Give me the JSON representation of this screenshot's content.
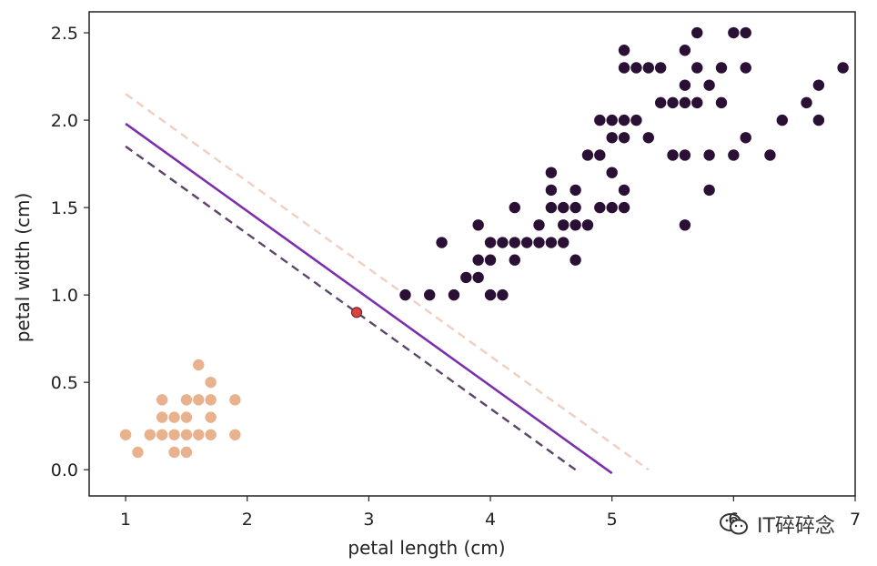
{
  "chart_data": {
    "type": "scatter",
    "title": "",
    "xlabel": "petal length (cm)",
    "ylabel": "petal width (cm)",
    "xlim": [
      0.7,
      7.0
    ],
    "ylim": [
      -0.15,
      2.62
    ],
    "xticks": [
      1,
      2,
      3,
      4,
      5,
      6,
      7
    ],
    "xtick_labels": [
      "1",
      "2",
      "3",
      "4",
      "5",
      "6",
      "7"
    ],
    "yticks": [
      0.0,
      0.5,
      1.0,
      1.5,
      2.0,
      2.5
    ],
    "ytick_labels": [
      "0.0",
      "0.5",
      "1.0",
      "1.5",
      "2.0",
      "2.5"
    ],
    "grid": false,
    "legend": "none",
    "series": [
      {
        "color": "#E9B28F",
        "points": [
          [
            1.0,
            0.2
          ],
          [
            1.1,
            0.1
          ],
          [
            1.2,
            0.2
          ],
          [
            1.3,
            0.2
          ],
          [
            1.3,
            0.3
          ],
          [
            1.3,
            0.4
          ],
          [
            1.4,
            0.1
          ],
          [
            1.4,
            0.2
          ],
          [
            1.4,
            0.3
          ],
          [
            1.5,
            0.1
          ],
          [
            1.5,
            0.2
          ],
          [
            1.5,
            0.3
          ],
          [
            1.5,
            0.4
          ],
          [
            1.6,
            0.2
          ],
          [
            1.6,
            0.4
          ],
          [
            1.6,
            0.6
          ],
          [
            1.7,
            0.2
          ],
          [
            1.7,
            0.3
          ],
          [
            1.7,
            0.4
          ],
          [
            1.7,
            0.5
          ],
          [
            1.9,
            0.2
          ],
          [
            1.9,
            0.4
          ]
        ]
      },
      {
        "color": "#2B1035",
        "points": [
          [
            3.3,
            1.0
          ],
          [
            3.5,
            1.0
          ],
          [
            3.6,
            1.3
          ],
          [
            3.7,
            1.0
          ],
          [
            3.8,
            1.1
          ],
          [
            3.9,
            1.1
          ],
          [
            3.9,
            1.2
          ],
          [
            3.9,
            1.4
          ],
          [
            4.0,
            1.0
          ],
          [
            4.0,
            1.2
          ],
          [
            4.0,
            1.3
          ],
          [
            4.1,
            1.0
          ],
          [
            4.1,
            1.3
          ],
          [
            4.2,
            1.2
          ],
          [
            4.2,
            1.3
          ],
          [
            4.2,
            1.5
          ],
          [
            4.3,
            1.3
          ],
          [
            4.4,
            1.3
          ],
          [
            4.4,
            1.4
          ],
          [
            4.5,
            1.3
          ],
          [
            4.5,
            1.5
          ],
          [
            4.5,
            1.6
          ],
          [
            4.5,
            1.7
          ],
          [
            4.6,
            1.3
          ],
          [
            4.6,
            1.4
          ],
          [
            4.6,
            1.5
          ],
          [
            4.7,
            1.2
          ],
          [
            4.7,
            1.4
          ],
          [
            4.7,
            1.5
          ],
          [
            4.7,
            1.6
          ],
          [
            4.8,
            1.4
          ],
          [
            4.8,
            1.8
          ],
          [
            4.9,
            1.5
          ],
          [
            4.9,
            1.8
          ],
          [
            4.9,
            2.0
          ],
          [
            5.0,
            1.5
          ],
          [
            5.0,
            1.7
          ],
          [
            5.0,
            1.9
          ],
          [
            5.0,
            2.0
          ],
          [
            5.1,
            1.5
          ],
          [
            5.1,
            1.6
          ],
          [
            5.1,
            1.9
          ],
          [
            5.1,
            2.0
          ],
          [
            5.1,
            2.3
          ],
          [
            5.1,
            2.4
          ],
          [
            5.2,
            2.0
          ],
          [
            5.2,
            2.3
          ],
          [
            5.3,
            1.9
          ],
          [
            5.3,
            2.3
          ],
          [
            5.4,
            2.1
          ],
          [
            5.4,
            2.3
          ],
          [
            5.5,
            1.8
          ],
          [
            5.5,
            2.1
          ],
          [
            5.6,
            1.4
          ],
          [
            5.6,
            1.8
          ],
          [
            5.6,
            2.1
          ],
          [
            5.6,
            2.2
          ],
          [
            5.6,
            2.4
          ],
          [
            5.7,
            2.1
          ],
          [
            5.7,
            2.3
          ],
          [
            5.7,
            2.5
          ],
          [
            5.8,
            1.6
          ],
          [
            5.8,
            1.8
          ],
          [
            5.8,
            2.2
          ],
          [
            5.9,
            2.1
          ],
          [
            5.9,
            2.3
          ],
          [
            6.0,
            1.8
          ],
          [
            6.0,
            2.5
          ],
          [
            6.1,
            1.9
          ],
          [
            6.1,
            2.3
          ],
          [
            6.1,
            2.5
          ],
          [
            6.3,
            1.8
          ],
          [
            6.4,
            2.0
          ],
          [
            6.6,
            2.1
          ],
          [
            6.7,
            2.0
          ],
          [
            6.7,
            2.2
          ],
          [
            6.9,
            2.3
          ]
        ]
      }
    ],
    "highlight_point": {
      "x": 2.9,
      "y": 0.9,
      "color": "#D9453A"
    },
    "lines": [
      {
        "style": "dashed",
        "color": "#F0CFC2",
        "x": [
          1.0,
          5.3
        ],
        "y": [
          2.15,
          0.0
        ]
      },
      {
        "style": "solid",
        "color": "#7B2FAF",
        "x": [
          1.0,
          5.0
        ],
        "y": [
          1.98,
          -0.02
        ]
      },
      {
        "style": "dashed",
        "color": "#5B4468",
        "x": [
          1.0,
          4.7
        ],
        "y": [
          1.85,
          0.0
        ]
      }
    ]
  },
  "watermark": {
    "text": "IT碎碎念",
    "icon": "wechat-icon"
  }
}
